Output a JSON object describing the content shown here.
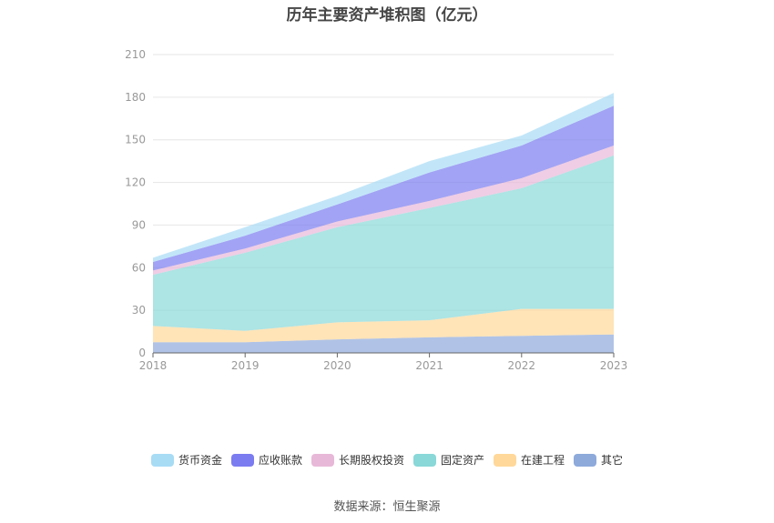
{
  "chart_data": {
    "type": "area",
    "stacked": true,
    "title": "历年主要资产堆积图（亿元）",
    "x": [
      "2018",
      "2019",
      "2020",
      "2021",
      "2022",
      "2023"
    ],
    "yticks": [
      "0",
      "30",
      "60",
      "90",
      "120",
      "150",
      "180",
      "210"
    ],
    "ylim": [
      0,
      210
    ],
    "grid": true,
    "legend_position": "bottom",
    "series": [
      {
        "name": "其它",
        "color": "#8eaadb",
        "values": [
          7.5,
          7.5,
          9.5,
          11,
          12,
          13
        ]
      },
      {
        "name": "在建工程",
        "color": "#ffd89a",
        "values": [
          11.5,
          8,
          12,
          12,
          19,
          18
        ]
      },
      {
        "name": "固定资产",
        "color": "#8ad8d8",
        "values": [
          36,
          55,
          67,
          79,
          85,
          108
        ]
      },
      {
        "name": "长期股权投资",
        "color": "#e8b8d8",
        "values": [
          3,
          3,
          4,
          5,
          7,
          7
        ]
      },
      {
        "name": "应收账款",
        "color": "#7b7cf0",
        "values": [
          6,
          9,
          12,
          20,
          23,
          28
        ]
      },
      {
        "name": "货币资金",
        "color": "#a8dcf5",
        "values": [
          3,
          6,
          6,
          8,
          7,
          9
        ]
      }
    ],
    "legend_order": [
      "货币资金",
      "应收账款",
      "长期股权投资",
      "固定资产",
      "在建工程",
      "其它"
    ]
  },
  "source": "数据来源：恒生聚源"
}
